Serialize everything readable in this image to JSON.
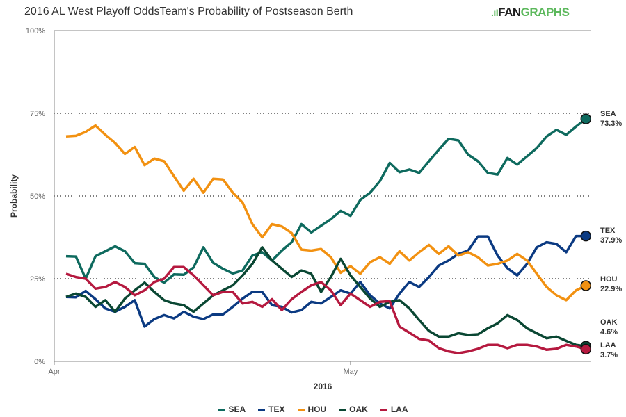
{
  "title": "2016 AL West Playoff OddsTeam's Probability of Postseason Berth",
  "logo": {
    "mark": ".ıI",
    "fan": "FAN",
    "graphs": "GRAPHS"
  },
  "chart_data": {
    "type": "line",
    "title": "2016 AL West Playoff OddsTeam's Probability of Postseason Berth",
    "xlabel": "2016",
    "ylabel": "Probability",
    "ylim": [
      0,
      100
    ],
    "y_ticks": [
      "0%",
      "25%",
      "50%",
      "75%",
      "100%"
    ],
    "x_ticks": [
      {
        "label": "Apr",
        "index": -1
      },
      {
        "label": "May",
        "index": 29
      }
    ],
    "grid": "dotted horizontal at 25, 50, 75",
    "legend": "bottom",
    "series": [
      {
        "name": "SEA",
        "color": "#0e6a5e",
        "end_label": "73.3%",
        "values": [
          31.8,
          31.7,
          25.0,
          31.8,
          33.3,
          34.8,
          33.3,
          29.7,
          29.5,
          25.5,
          23.8,
          26.3,
          26.2,
          28.4,
          34.5,
          29.8,
          28.0,
          26.6,
          27.5,
          32.0,
          33.0,
          30.5,
          33.5,
          36.0,
          41.5,
          39.0,
          41.0,
          43.0,
          45.5,
          44.0,
          48.8,
          51.0,
          54.5,
          60.0,
          57.2,
          58.0,
          57.0,
          60.5,
          64.0,
          67.3,
          66.8,
          62.5,
          60.5,
          57.0,
          56.5,
          61.5,
          59.5,
          62.0,
          64.5,
          68.0,
          70.0,
          68.5,
          71.0,
          73.3
        ]
      },
      {
        "name": "TEX",
        "color": "#0b3a82",
        "end_label": "37.9%",
        "values": [
          19.5,
          19.4,
          21.3,
          18.8,
          16.0,
          15.0,
          16.5,
          18.5,
          10.5,
          12.8,
          14.0,
          13.0,
          15.0,
          13.5,
          12.8,
          14.2,
          14.2,
          16.5,
          19.0,
          21.0,
          21.0,
          17.0,
          16.5,
          14.8,
          15.5,
          18.0,
          17.5,
          19.5,
          21.5,
          20.5,
          24.0,
          20.0,
          17.5,
          16.0,
          20.5,
          24.0,
          22.5,
          25.5,
          29.0,
          30.5,
          32.5,
          33.5,
          37.8,
          37.8,
          32.0,
          28.2,
          26.0,
          29.5,
          34.5,
          36.0,
          35.5,
          33.0,
          37.9,
          37.9
        ]
      },
      {
        "name": "HOU",
        "color": "#f29111",
        "end_label": "22.9%",
        "values": [
          68.0,
          68.2,
          69.4,
          71.3,
          68.5,
          66.0,
          62.7,
          64.8,
          59.3,
          61.3,
          60.5,
          56.0,
          51.6,
          55.2,
          51.0,
          55.2,
          55.0,
          51.0,
          48.0,
          41.5,
          37.5,
          41.5,
          40.8,
          38.8,
          33.8,
          33.5,
          34.0,
          31.5,
          26.8,
          28.8,
          26.5,
          30.0,
          31.5,
          29.5,
          33.3,
          30.5,
          33.0,
          35.2,
          32.5,
          34.8,
          32.0,
          33.0,
          31.5,
          29.0,
          29.5,
          30.5,
          32.5,
          30.5,
          26.5,
          22.5,
          20.0,
          18.5,
          21.5,
          22.9
        ]
      },
      {
        "name": "OAK",
        "color": "#0a4733",
        "end_label": "4.6%",
        "values": [
          19.5,
          20.5,
          19.5,
          16.5,
          18.5,
          15.0,
          19.0,
          21.5,
          23.8,
          21.0,
          18.5,
          17.5,
          17.0,
          15.0,
          17.5,
          20.0,
          21.5,
          23.0,
          26.0,
          29.5,
          34.5,
          30.5,
          28.0,
          25.5,
          27.5,
          26.5,
          21.0,
          25.5,
          31.0,
          26.0,
          22.5,
          19.0,
          16.5,
          18.0,
          18.5,
          16.0,
          12.5,
          9.2,
          7.5,
          7.5,
          8.5,
          8.0,
          8.2,
          10.0,
          11.5,
          14.0,
          12.5,
          10.0,
          8.5,
          7.0,
          7.5,
          6.2,
          5.0,
          4.6
        ]
      },
      {
        "name": "LAA",
        "color": "#b5193f",
        "end_label": "3.7%",
        "values": [
          26.5,
          25.5,
          25.0,
          22.0,
          22.5,
          24.0,
          22.5,
          20.0,
          21.5,
          24.0,
          25.0,
          28.5,
          28.5,
          26.0,
          23.0,
          20.0,
          21.0,
          21.0,
          17.5,
          18.0,
          16.5,
          18.8,
          15.5,
          18.8,
          21.0,
          23.0,
          24.0,
          21.5,
          17.0,
          20.5,
          18.5,
          16.5,
          18.0,
          18.2,
          10.5,
          8.7,
          6.8,
          6.3,
          4.0,
          3.0,
          2.5,
          3.0,
          3.8,
          5.0,
          5.0,
          4.0,
          5.0,
          5.0,
          4.5,
          3.5,
          3.8,
          5.0,
          4.5,
          3.7
        ]
      }
    ]
  }
}
